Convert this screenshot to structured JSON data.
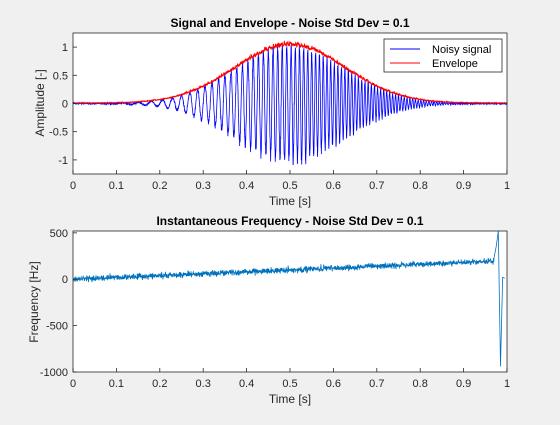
{
  "chart_data": [
    {
      "type": "line",
      "title": "Signal and Envelope - Noise Std Dev = 0.1",
      "xlabel": "Time [s]",
      "ylabel": "Amplitude [-]",
      "xlim": [
        0,
        1
      ],
      "ylim": [
        -1.25,
        1.25
      ],
      "xticks": [
        "0",
        "0.1",
        "0.2",
        "0.3",
        "0.4",
        "0.5",
        "0.6",
        "0.7",
        "0.8",
        "0.9",
        "1"
      ],
      "yticks": [
        "-1",
        "-0.5",
        "0",
        "0.5",
        "1"
      ],
      "grid": false,
      "legend_position": "top-right",
      "series": [
        {
          "name": "Noisy signal",
          "color": "#0000ff",
          "description": "linear chirp with Gaussian amplitude window, peak amplitude 1 near t = 0.5, plus noise of std dev 0.1",
          "envelope_peak": 1.0,
          "envelope_center": 0.5,
          "envelope_width": 0.18,
          "frequency_start_hz": 0,
          "frequency_end_hz": 200,
          "noise_std": 0.1
        },
        {
          "name": "Envelope",
          "color": "#ff0000",
          "description": "upper envelope of noisy signal, peaking about 1.15 near t = 0.5"
        }
      ]
    },
    {
      "type": "line",
      "title": "Instantaneous Frequency - Noise Std Dev = 0.1",
      "xlabel": "Time [s]",
      "ylabel": "Frequency [Hz]",
      "xlim": [
        0,
        1
      ],
      "ylim": [
        -1000,
        520
      ],
      "xticks": [
        "0",
        "0.1",
        "0.2",
        "0.3",
        "0.4",
        "0.5",
        "0.6",
        "0.7",
        "0.8",
        "0.9",
        "1"
      ],
      "yticks": [
        "-1000",
        "-500",
        "0",
        "500"
      ],
      "grid": false,
      "series": [
        {
          "color": "#0072bd",
          "trend_x": [
            0,
            0.1,
            0.2,
            0.3,
            0.4,
            0.5,
            0.6,
            0.7,
            0.8,
            0.9,
            0.97
          ],
          "trend_y": [
            0,
            20,
            40,
            60,
            80,
            100,
            120,
            140,
            160,
            180,
            195
          ],
          "spike_x": [
            0.975,
            0.98,
            0.985,
            0.99
          ],
          "spike_y": [
            350,
            520,
            -940,
            20
          ]
        }
      ]
    }
  ]
}
